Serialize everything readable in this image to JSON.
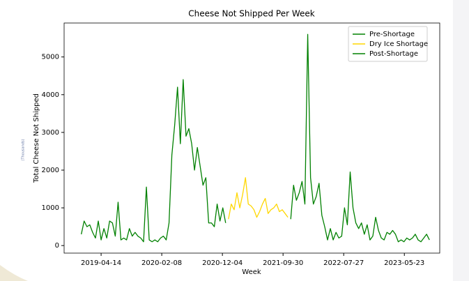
{
  "chart_data": {
    "type": "line",
    "title": "Cheese Not Shipped Per Week",
    "x_label": "Week",
    "y_label": "Total Cheese Not Shipped",
    "annotation": "(Thousands)",
    "series": [
      {
        "name": "Pre-Shortage",
        "color": "#008000",
        "x": [
          "2019-01-06",
          "2019-01-20",
          "2019-02-03",
          "2019-02-17",
          "2019-03-03",
          "2019-03-17",
          "2019-03-31",
          "2019-04-14",
          "2019-04-28",
          "2019-05-12",
          "2019-05-26",
          "2019-06-09",
          "2019-06-23",
          "2019-07-07",
          "2019-07-21",
          "2019-08-04",
          "2019-08-18",
          "2019-09-01",
          "2019-09-15",
          "2019-09-29",
          "2019-10-13",
          "2019-10-27",
          "2019-11-10",
          "2019-11-24",
          "2019-12-08",
          "2019-12-22",
          "2020-01-05",
          "2020-01-19",
          "2020-02-02",
          "2020-02-16",
          "2020-03-01",
          "2020-03-15",
          "2020-03-29",
          "2020-04-12",
          "2020-04-26",
          "2020-05-10",
          "2020-05-24",
          "2020-06-07",
          "2020-06-21",
          "2020-07-05",
          "2020-07-19",
          "2020-08-02",
          "2020-08-16",
          "2020-08-30",
          "2020-09-13",
          "2020-09-27",
          "2020-10-11",
          "2020-10-25",
          "2020-11-08",
          "2020-11-22",
          "2020-12-06",
          "2020-12-20"
        ],
        "values": [
          300,
          650,
          500,
          550,
          350,
          200,
          650,
          150,
          450,
          200,
          650,
          600,
          250,
          1150,
          150,
          200,
          150,
          450,
          250,
          350,
          250,
          200,
          100,
          1550,
          150,
          100,
          150,
          100,
          200,
          250,
          150,
          600,
          2400,
          3200,
          4200,
          2700,
          4400,
          2900,
          3100,
          2700,
          2000,
          2600,
          2100,
          1600,
          1800,
          600,
          600,
          500,
          1100,
          650,
          1000,
          600
        ]
      },
      {
        "name": "Dry Ice Shortage",
        "color": "#ffd700",
        "x": [
          "2021-01-03",
          "2021-01-17",
          "2021-01-31",
          "2021-02-14",
          "2021-02-28",
          "2021-03-14",
          "2021-03-28",
          "2021-04-11",
          "2021-04-25",
          "2021-05-09",
          "2021-05-23",
          "2021-06-06",
          "2021-06-20",
          "2021-07-04",
          "2021-07-18",
          "2021-08-01",
          "2021-08-15",
          "2021-08-29",
          "2021-09-12",
          "2021-09-26",
          "2021-10-10",
          "2021-10-24"
        ],
        "values": [
          700,
          1100,
          950,
          1400,
          1000,
          1350,
          1800,
          1100,
          1050,
          950,
          750,
          900,
          1100,
          1250,
          850,
          950,
          1000,
          1100,
          900,
          950,
          850,
          750
        ]
      },
      {
        "name": "Post-Shortage",
        "color": "#008000",
        "x": [
          "2021-11-07",
          "2021-11-21",
          "2021-12-05",
          "2021-12-19",
          "2022-01-02",
          "2022-01-16",
          "2022-01-30",
          "2022-02-13",
          "2022-02-27",
          "2022-03-13",
          "2022-03-27",
          "2022-04-10",
          "2022-04-24",
          "2022-05-08",
          "2022-05-22",
          "2022-06-05",
          "2022-06-19",
          "2022-07-03",
          "2022-07-17",
          "2022-07-31",
          "2022-08-14",
          "2022-08-28",
          "2022-09-11",
          "2022-09-25",
          "2022-10-09",
          "2022-10-23",
          "2022-11-06",
          "2022-11-20",
          "2022-12-04",
          "2022-12-18",
          "2023-01-01",
          "2023-01-15",
          "2023-01-29",
          "2023-02-12",
          "2023-02-26",
          "2023-03-12",
          "2023-03-26",
          "2023-04-09",
          "2023-04-23",
          "2023-05-07",
          "2023-05-21",
          "2023-06-04",
          "2023-06-18",
          "2023-07-02",
          "2023-07-16",
          "2023-07-30",
          "2023-08-13",
          "2023-08-27",
          "2023-09-10",
          "2023-09-24"
        ],
        "values": [
          700,
          1600,
          1200,
          1400,
          1700,
          1100,
          5600,
          1800,
          1100,
          1300,
          1650,
          800,
          500,
          150,
          450,
          150,
          350,
          200,
          250,
          1000,
          550,
          1950,
          1000,
          600,
          450,
          600,
          300,
          550,
          150,
          250,
          750,
          400,
          200,
          150,
          350,
          300,
          400,
          300,
          100,
          150,
          100,
          200,
          150,
          200,
          300,
          150,
          100,
          200,
          300,
          150
        ]
      }
    ],
    "xlim": [
      "2018-10-13",
      "2023-11-14"
    ],
    "xticks": [
      "2019-04-14",
      "2020-02-08",
      "2020-12-04",
      "2021-09-30",
      "2022-07-27",
      "2023-05-23"
    ],
    "ylim": [
      -200,
      5900
    ],
    "yticks": [
      0,
      1000,
      2000,
      3000,
      4000,
      5000
    ],
    "grid": false,
    "legend": "upper right"
  }
}
